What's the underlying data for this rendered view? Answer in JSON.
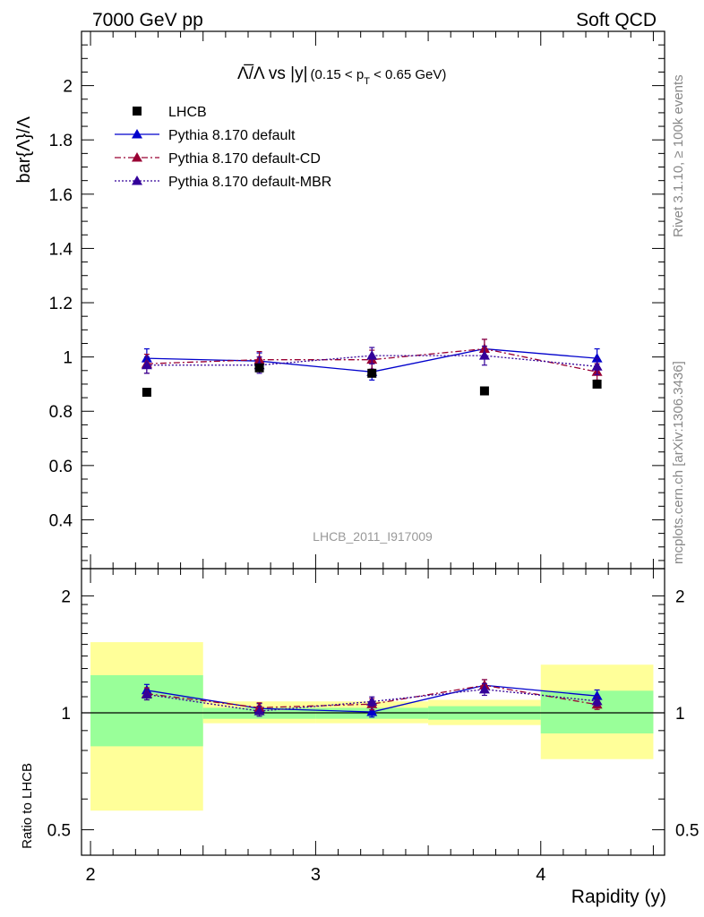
{
  "header": {
    "left": "7000 GeV pp",
    "right": "Soft QCD"
  },
  "side_text": {
    "rivet": "Rivet 3.1.10, ≥ 100k events",
    "mcplots": "mcplots.cern.ch [arXiv:1306.3436]"
  },
  "watermark": "LHCB_2011_I917009",
  "chart_data": [
    {
      "type": "scatter",
      "title_main": "Λ̅/Λ vs |y|",
      "title_sub": "(0.15 < p",
      "title_sub_index": "T",
      "title_sub_end": " < 0.65 GeV)",
      "ylabel": "bar{Λ}/Λ",
      "xlim": [
        1.96,
        4.55
      ],
      "ylim": [
        0.22,
        2.2
      ],
      "yticks": [
        "0.4",
        "0.6",
        "0.8",
        "1",
        "1.2",
        "1.4",
        "1.6",
        "1.8",
        "2"
      ],
      "legend_position": "top-left",
      "x": [
        2.25,
        2.75,
        3.25,
        3.75,
        4.25
      ],
      "series": [
        {
          "name": "LHCB",
          "style": "square",
          "color": "#000000",
          "values": [
            0.87,
            0.96,
            0.94,
            0.875,
            0.9
          ]
        },
        {
          "name": "Pythia 8.170 default",
          "style": "solid",
          "color": "#0000cc",
          "values": [
            0.995,
            0.985,
            0.945,
            1.03,
            0.995
          ],
          "errors": [
            0.035,
            0.03,
            0.03,
            0.035,
            0.035
          ]
        },
        {
          "name": "Pythia 8.170 default-CD",
          "style": "dashdot",
          "color": "#990033",
          "values": [
            0.975,
            0.99,
            0.99,
            1.03,
            0.945
          ],
          "errors": [
            0.035,
            0.03,
            0.035,
            0.035,
            0.03
          ]
        },
        {
          "name": "Pythia 8.170 default-MBR",
          "style": "dotted",
          "color": "#330099",
          "values": [
            0.97,
            0.97,
            1.005,
            1.005,
            0.965
          ],
          "errors": [
            0.03,
            0.03,
            0.03,
            0.035,
            0.03
          ]
        }
      ]
    },
    {
      "type": "scatter",
      "ylabel": "Ratio to LHCB",
      "xlabel": "Rapidity (y)",
      "xlim": [
        1.96,
        4.55
      ],
      "ylim": [
        0.43,
        2.35
      ],
      "log_y": true,
      "yticks": [
        "0.5",
        "1",
        "2"
      ],
      "xticks": [
        "2",
        "3",
        "4"
      ],
      "x": [
        2.25,
        2.75,
        3.25,
        3.75,
        4.25
      ],
      "bands": [
        {
          "x0": 2.0,
          "x1": 2.5,
          "yellow": [
            0.56,
            1.52
          ],
          "green": [
            0.82,
            1.25
          ]
        },
        {
          "x0": 2.5,
          "x1": 3.0,
          "yellow": [
            0.94,
            1.07
          ],
          "green": [
            0.965,
            1.03
          ]
        },
        {
          "x0": 3.0,
          "x1": 3.5,
          "yellow": [
            0.94,
            1.07
          ],
          "green": [
            0.965,
            1.03
          ]
        },
        {
          "x0": 3.5,
          "x1": 4.0,
          "yellow": [
            0.93,
            1.08
          ],
          "green": [
            0.96,
            1.04
          ]
        },
        {
          "x0": 4.0,
          "x1": 4.5,
          "yellow": [
            0.76,
            1.33
          ],
          "green": [
            0.885,
            1.14
          ]
        }
      ],
      "series": [
        {
          "name": "Pythia 8.170 default",
          "style": "solid",
          "color": "#0000cc",
          "values": [
            1.143,
            1.026,
            1.005,
            1.177,
            1.105
          ],
          "errors": [
            0.04,
            0.03,
            0.03,
            0.04,
            0.04
          ]
        },
        {
          "name": "Pythia 8.170 default-CD",
          "style": "dashdot",
          "color": "#990033",
          "values": [
            1.12,
            1.031,
            1.053,
            1.177,
            1.05
          ],
          "errors": [
            0.04,
            0.03,
            0.035,
            0.04,
            0.03
          ]
        },
        {
          "name": "Pythia 8.170 default-MBR",
          "style": "dotted",
          "color": "#330099",
          "values": [
            1.115,
            1.01,
            1.069,
            1.149,
            1.072
          ],
          "errors": [
            0.035,
            0.03,
            0.03,
            0.04,
            0.03
          ]
        }
      ]
    }
  ]
}
